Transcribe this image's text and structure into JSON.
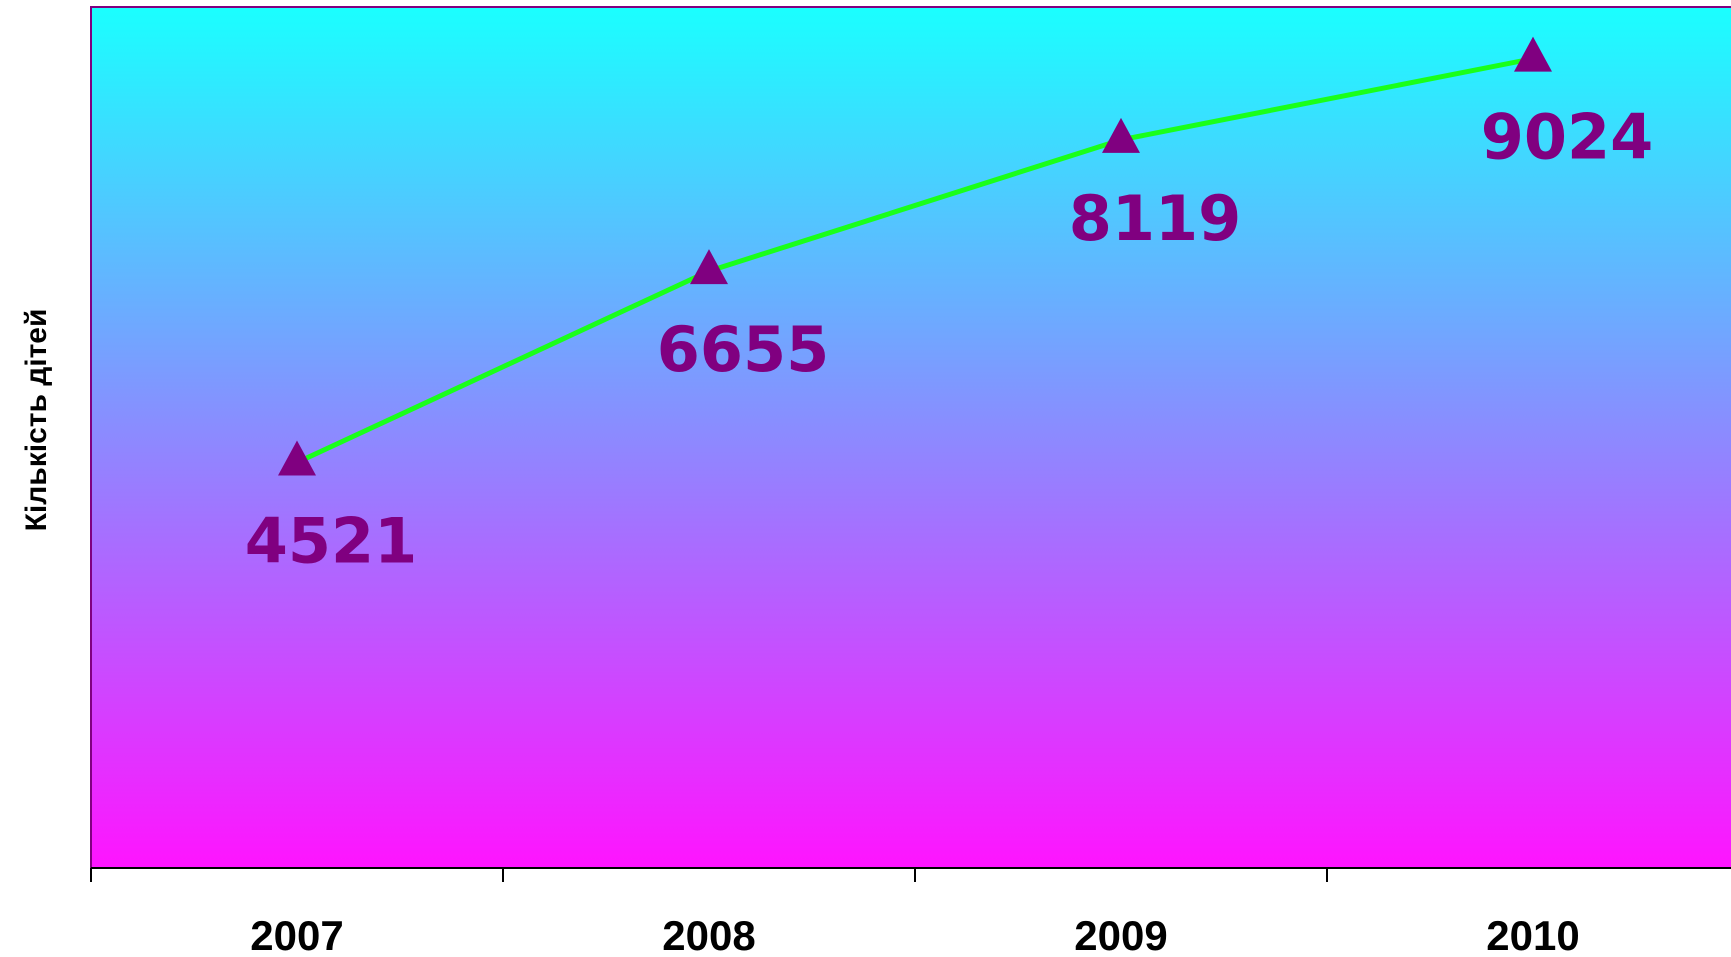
{
  "chart_data": {
    "type": "line",
    "title": "",
    "xlabel": "",
    "ylabel": "Кількість дітей",
    "categories": [
      "2007",
      "2008",
      "2009",
      "2010"
    ],
    "series": [
      {
        "values": [
          4521,
          6655,
          8119,
          9024
        ]
      }
    ],
    "ylim": [
      0,
      9600
    ],
    "grid": false,
    "legend": "none",
    "marker": "triangle"
  },
  "colors": {
    "plot_top": "#1affff",
    "plot_bottom": "#ff14ff",
    "line": "#1aff1a",
    "marker": "#800080",
    "data_label": "#800080",
    "plot_border": "#800080",
    "axis": "#000000"
  }
}
